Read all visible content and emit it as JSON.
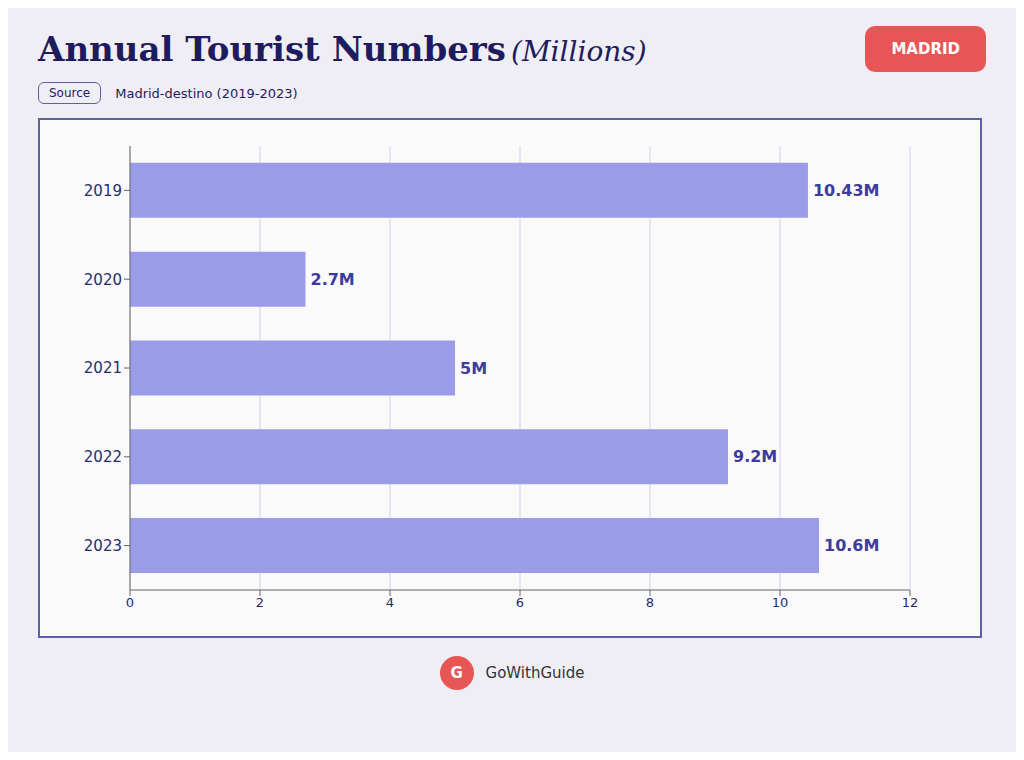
{
  "chart_data": {
    "type": "bar",
    "orientation": "horizontal",
    "title": "Annual Tourist Numbers",
    "subtitle": "(Millions)",
    "annotations": [
      "Source",
      "Madrid-destino (2019-2023)",
      "MADRID",
      "GoWithGuide",
      "G"
    ],
    "categories": [
      "2019",
      "2020",
      "2021",
      "2022",
      "2023"
    ],
    "values": [
      10.43,
      2.7,
      5.0,
      9.2,
      10.6
    ],
    "value_labels": [
      "10.43M",
      "2.7M",
      "5M",
      "9.2M",
      "10.6M"
    ],
    "data_labels": true,
    "color": "#9B9CE8",
    "xlim": [
      0,
      12
    ],
    "xticks": [
      0,
      2,
      4,
      6,
      8,
      10,
      12
    ],
    "grid": true
  }
}
